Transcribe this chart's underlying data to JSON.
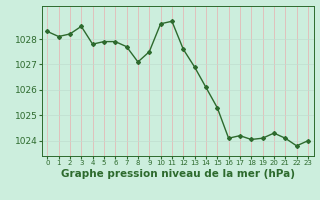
{
  "x": [
    0,
    1,
    2,
    3,
    4,
    5,
    6,
    7,
    8,
    9,
    10,
    11,
    12,
    13,
    14,
    15,
    16,
    17,
    18,
    19,
    20,
    21,
    22,
    23
  ],
  "y": [
    1028.3,
    1028.1,
    1028.2,
    1028.5,
    1027.8,
    1027.9,
    1027.9,
    1027.7,
    1027.1,
    1027.5,
    1028.6,
    1028.7,
    1027.6,
    1026.9,
    1026.1,
    1025.3,
    1024.1,
    1024.2,
    1024.05,
    1024.1,
    1024.3,
    1024.1,
    1023.8,
    1024.0
  ],
  "line_color": "#2d6a2d",
  "marker_color": "#2d6a2d",
  "bg_color": "#cceedd",
  "grid_color_v": "#e8b0b0",
  "grid_color_h": "#c0ddd0",
  "title": "Graphe pression niveau de la mer (hPa)",
  "ylim_min": 1023.4,
  "ylim_max": 1029.3,
  "yticks": [
    1024,
    1025,
    1026,
    1027,
    1028
  ],
  "title_fontsize": 7.5
}
